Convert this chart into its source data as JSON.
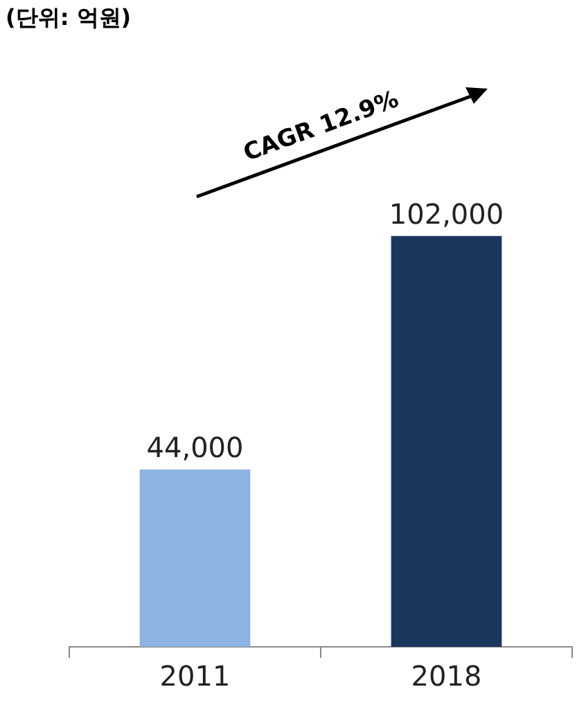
{
  "chart_data": {
    "type": "bar",
    "categories": [
      "2011",
      "2018"
    ],
    "values": [
      44000,
      102000
    ],
    "colors": [
      "#8db3e2",
      "#1b365d"
    ],
    "value_labels": [
      "44,000",
      "102,000"
    ],
    "grid": false,
    "legend": false,
    "annotations": [
      "(단위: 억원)",
      "CAGR 12.9%"
    ]
  }
}
